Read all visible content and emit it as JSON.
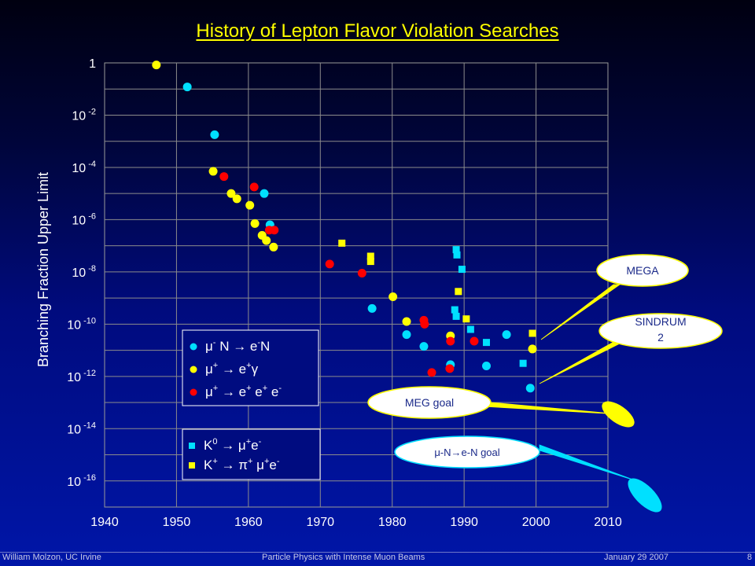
{
  "slide": {
    "title": "History of Lepton Flavor Violation Searches",
    "footer": {
      "author": "William Molzon, UC Irvine",
      "talk": "Particle Physics with Intense Muon Beams",
      "date": "January 29 2007",
      "page": "8"
    }
  },
  "chart_data": {
    "type": "scatter",
    "ylabel": "Branching Fraction Upper Limit",
    "xlim": [
      1940,
      2010
    ],
    "ylim_log10": [
      -17,
      0
    ],
    "y_scale": "log",
    "grid": true,
    "x_ticks": [
      "1940",
      "1950",
      "1960",
      "1970",
      "1980",
      "1990",
      "2000",
      "2010"
    ],
    "y_ticks": [
      {
        "log": 0,
        "base": "1",
        "exp": ""
      },
      {
        "log": -2,
        "base": "10",
        "exp": "-2"
      },
      {
        "log": -4,
        "base": "10",
        "exp": "-4"
      },
      {
        "log": -6,
        "base": "10",
        "exp": "-6"
      },
      {
        "log": -8,
        "base": "10",
        "exp": "-8"
      },
      {
        "log": -10,
        "base": "10",
        "exp": "-10"
      },
      {
        "log": -12,
        "base": "10",
        "exp": "-12"
      },
      {
        "log": -14,
        "base": "10",
        "exp": "-14"
      },
      {
        "log": -16,
        "base": "10",
        "exp": "-16"
      }
    ],
    "legend_muon": {
      "position": "lower-middle",
      "entries": [
        {
          "parts": [
            "μ",
            "-",
            " N → e",
            "-",
            "N"
          ],
          "color": "#00e0ff"
        },
        {
          "parts": [
            "μ",
            "+",
            " → e",
            "+",
            "γ"
          ],
          "color": "#ffff00"
        },
        {
          "parts": [
            "μ",
            "+",
            " → e",
            "+",
            " e",
            "+",
            " e",
            "-",
            ""
          ],
          "color": "#ff0000"
        }
      ]
    },
    "legend_kaon": {
      "position": "lower-middle",
      "entries": [
        {
          "parts": [
            "K",
            "0",
            " → μ",
            "+",
            "e",
            "-",
            ""
          ],
          "color": "#00e0ff"
        },
        {
          "parts": [
            "K",
            "+",
            " → π",
            "+",
            " μ",
            "+",
            "e",
            "-",
            ""
          ],
          "color": "#ffff00"
        }
      ]
    },
    "series": [
      {
        "name": "μ- N → e-N",
        "color": "#00e0ff",
        "marker": "circle",
        "points": [
          [
            1951.5,
            -0.92
          ],
          [
            1955.3,
            -2.75
          ],
          [
            1962.2,
            -5.0
          ],
          [
            1963.0,
            -6.2
          ],
          [
            1977.2,
            -9.4
          ],
          [
            1982.0,
            -10.4
          ],
          [
            1984.4,
            -10.85
          ],
          [
            1988.1,
            -11.55
          ],
          [
            1993.1,
            -11.6
          ],
          [
            1995.9,
            -10.4
          ],
          [
            1999.2,
            -12.45
          ]
        ]
      },
      {
        "name": "μ+ → e+γ",
        "color": "#ffff00",
        "marker": "circle",
        "points": [
          [
            1947.2,
            -0.08
          ],
          [
            1955.1,
            -4.15
          ],
          [
            1957.6,
            -5.0
          ],
          [
            1958.4,
            -5.2
          ],
          [
            1960.2,
            -5.45
          ],
          [
            1960.9,
            -6.15
          ],
          [
            1961.9,
            -6.6
          ],
          [
            1962.5,
            -6.8
          ],
          [
            1963.5,
            -7.05
          ],
          [
            1980.1,
            -8.95
          ],
          [
            1982.0,
            -9.9
          ],
          [
            1988.1,
            -10.45
          ],
          [
            1999.5,
            -10.95
          ]
        ]
      },
      {
        "name": "μ+ → e+ e+ e-",
        "color": "#ff0000",
        "marker": "circle",
        "points": [
          [
            1956.6,
            -4.35
          ],
          [
            1960.8,
            -4.75
          ],
          [
            1962.9,
            -6.4
          ],
          [
            1963.6,
            -6.4
          ],
          [
            1971.3,
            -7.7
          ],
          [
            1975.8,
            -8.05
          ],
          [
            1984.4,
            -9.85
          ],
          [
            1984.5,
            -10.0
          ],
          [
            1985.5,
            -11.85
          ],
          [
            1988.0,
            -11.7
          ],
          [
            1988.1,
            -10.65
          ],
          [
            1991.4,
            -10.65
          ]
        ]
      },
      {
        "name": "K0 → μ+e-",
        "color": "#00e0ff",
        "marker": "square",
        "points": [
          [
            1988.9,
            -7.15
          ],
          [
            1989.0,
            -7.35
          ],
          [
            1989.7,
            -7.9
          ],
          [
            1988.7,
            -9.45
          ],
          [
            1988.9,
            -9.7
          ],
          [
            1990.9,
            -10.2
          ],
          [
            1993.1,
            -10.7
          ],
          [
            1998.2,
            -11.5
          ]
        ]
      },
      {
        "name": "K+ → π+ μ+e-",
        "color": "#ffff00",
        "marker": "square",
        "points": [
          [
            1973.0,
            -6.9
          ],
          [
            1977.0,
            -7.4
          ],
          [
            1977.0,
            -7.6
          ],
          [
            1989.2,
            -8.75
          ],
          [
            1990.3,
            -9.8
          ],
          [
            1999.5,
            -10.35
          ]
        ]
      }
    ],
    "annotations": {
      "mega": {
        "label": "MEGA",
        "point": [
          2000.0,
          -10.7
        ]
      },
      "sindrum": {
        "label": "SINDRUM",
        "label2": "2",
        "point": [
          2000.0,
          -12.15
        ]
      },
      "meg_goal": {
        "label": "MEG goal"
      },
      "mun_goal": {
        "label": "μ-N→e-N goal"
      }
    }
  }
}
